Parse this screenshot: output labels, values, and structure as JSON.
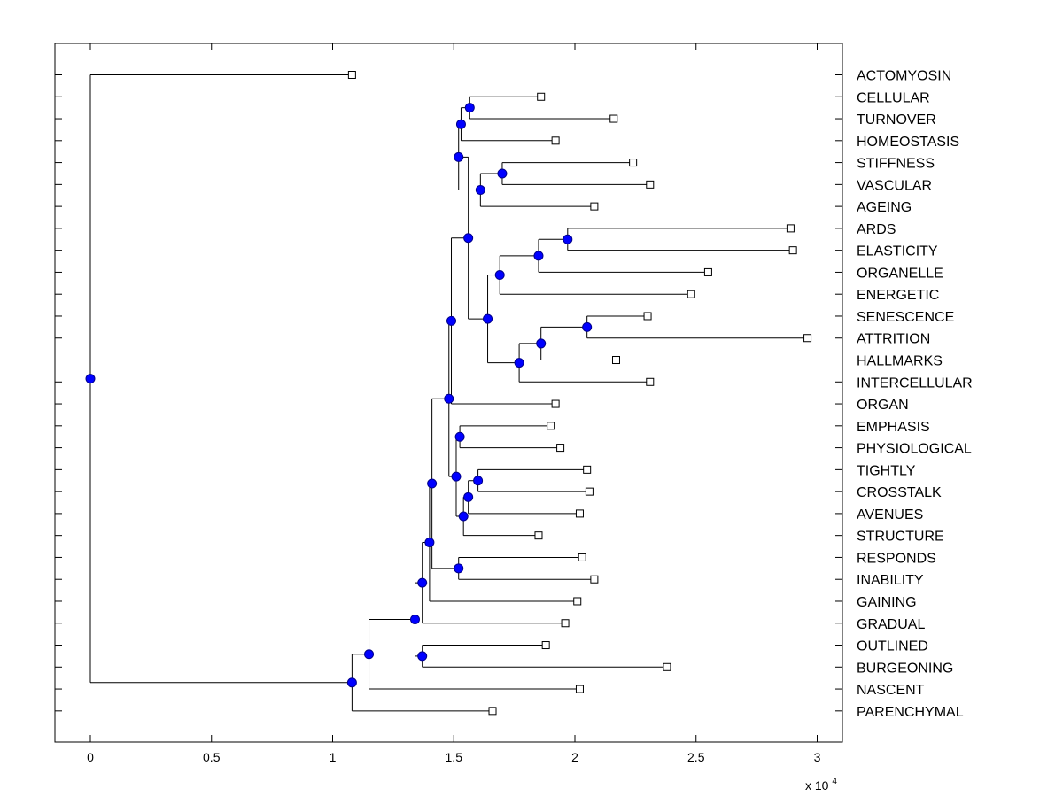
{
  "chart_data": {
    "type": "dendrogram",
    "title": "",
    "xlabel": "",
    "ylabel": "",
    "x_multiplier_label": "x 10",
    "x_multiplier_exponent": "4",
    "xlim": [
      -0.14,
      3.1
    ],
    "x_ticks": [
      0,
      0.5,
      1,
      1.5,
      2,
      2.5,
      3
    ],
    "x_tick_labels": [
      "0",
      "0.5",
      "1",
      "1.5",
      "2",
      "2.5",
      "3"
    ],
    "colors": {
      "node": "#0000ff",
      "node_stroke": "#00008b",
      "leaf_marker": "#ffffff",
      "line": "#000000"
    },
    "leaves": [
      {
        "label": "ACTOMYOSIN",
        "x": 1.08
      },
      {
        "label": "CELLULAR",
        "x": 1.86
      },
      {
        "label": "TURNOVER",
        "x": 2.16
      },
      {
        "label": "HOMEOSTASIS",
        "x": 1.92
      },
      {
        "label": "STIFFNESS",
        "x": 2.24
      },
      {
        "label": "VASCULAR",
        "x": 2.31
      },
      {
        "label": "AGEING",
        "x": 2.08
      },
      {
        "label": "ARDS",
        "x": 2.89
      },
      {
        "label": "ELASTICITY",
        "x": 2.9
      },
      {
        "label": "ORGANELLE",
        "x": 2.55
      },
      {
        "label": "ENERGETIC",
        "x": 2.48
      },
      {
        "label": "SENESCENCE",
        "x": 2.3
      },
      {
        "label": "ATTRITION",
        "x": 2.96
      },
      {
        "label": "HALLMARKS",
        "x": 2.17
      },
      {
        "label": "INTERCELLULAR",
        "x": 2.31
      },
      {
        "label": "ORGAN",
        "x": 1.92
      },
      {
        "label": "EMPHASIS",
        "x": 1.9
      },
      {
        "label": "PHYSIOLOGICAL",
        "x": 1.94
      },
      {
        "label": "TIGHTLY",
        "x": 2.05
      },
      {
        "label": "CROSSTALK",
        "x": 2.06
      },
      {
        "label": "AVENUES",
        "x": 2.02
      },
      {
        "label": "STRUCTURE",
        "x": 1.85
      },
      {
        "label": "RESPONDS",
        "x": 2.03
      },
      {
        "label": "INABILITY",
        "x": 2.08
      },
      {
        "label": "GAINING",
        "x": 2.01
      },
      {
        "label": "GRADUAL",
        "x": 1.96
      },
      {
        "label": "OUTLINED",
        "x": 1.88
      },
      {
        "label": "BURGEONING",
        "x": 2.38
      },
      {
        "label": "NASCENT",
        "x": 2.02
      },
      {
        "label": "PARENCHYMAL",
        "x": 1.66
      }
    ],
    "internal_nodes": [
      {
        "id": "n1",
        "x": 1.566,
        "children": [
          "L1",
          "L2"
        ]
      },
      {
        "id": "n2",
        "x": 1.53,
        "children": [
          "n1",
          "L3"
        ]
      },
      {
        "id": "n3",
        "x": 1.7,
        "children": [
          "L4",
          "L5"
        ]
      },
      {
        "id": "n4",
        "x": 1.61,
        "children": [
          "n3",
          "L6"
        ]
      },
      {
        "id": "n5",
        "x": 1.52,
        "children": [
          "n2",
          "n4"
        ]
      },
      {
        "id": "n6",
        "x": 1.97,
        "children": [
          "L7",
          "L8"
        ]
      },
      {
        "id": "n7",
        "x": 1.85,
        "children": [
          "n6",
          "L9"
        ]
      },
      {
        "id": "n8",
        "x": 1.69,
        "children": [
          "n7",
          "L10"
        ]
      },
      {
        "id": "n9",
        "x": 2.05,
        "children": [
          "L11",
          "L12"
        ]
      },
      {
        "id": "n10",
        "x": 1.86,
        "children": [
          "n9",
          "L13"
        ]
      },
      {
        "id": "n11",
        "x": 1.77,
        "children": [
          "n10",
          "L14"
        ]
      },
      {
        "id": "n12",
        "x": 1.64,
        "children": [
          "n8",
          "n11"
        ]
      },
      {
        "id": "n13",
        "x": 1.56,
        "children": [
          "n5",
          "n12"
        ]
      },
      {
        "id": "n14",
        "x": 1.49,
        "children": [
          "n13",
          "L15"
        ]
      },
      {
        "id": "n15",
        "x": 1.525,
        "children": [
          "L16",
          "L17"
        ]
      },
      {
        "id": "n16",
        "x": 1.6,
        "children": [
          "L18",
          "L19"
        ]
      },
      {
        "id": "n17",
        "x": 1.56,
        "children": [
          "n16",
          "L20"
        ]
      },
      {
        "id": "n18",
        "x": 1.54,
        "children": [
          "n17",
          "L21"
        ]
      },
      {
        "id": "n19",
        "x": 1.51,
        "children": [
          "n15",
          "n18"
        ]
      },
      {
        "id": "n20",
        "x": 1.48,
        "children": [
          "n14",
          "n19"
        ]
      },
      {
        "id": "n21",
        "x": 1.52,
        "children": [
          "L22",
          "L23"
        ]
      },
      {
        "id": "n22",
        "x": 1.41,
        "children": [
          "n20",
          "n21"
        ]
      },
      {
        "id": "n23",
        "x": 1.4,
        "children": [
          "n22",
          "L24"
        ]
      },
      {
        "id": "n24",
        "x": 1.37,
        "children": [
          "n23",
          "L25"
        ]
      },
      {
        "id": "n25",
        "x": 1.37,
        "children": [
          "L26",
          "L27"
        ]
      },
      {
        "id": "n26",
        "x": 1.34,
        "children": [
          "n24",
          "n25"
        ]
      },
      {
        "id": "n27",
        "x": 1.15,
        "children": [
          "n26",
          "L28"
        ]
      },
      {
        "id": "n28",
        "x": 1.08,
        "children": [
          "n27",
          "L29"
        ]
      },
      {
        "id": "root",
        "x": 0.0,
        "children": [
          "L0",
          "n28"
        ]
      }
    ]
  }
}
